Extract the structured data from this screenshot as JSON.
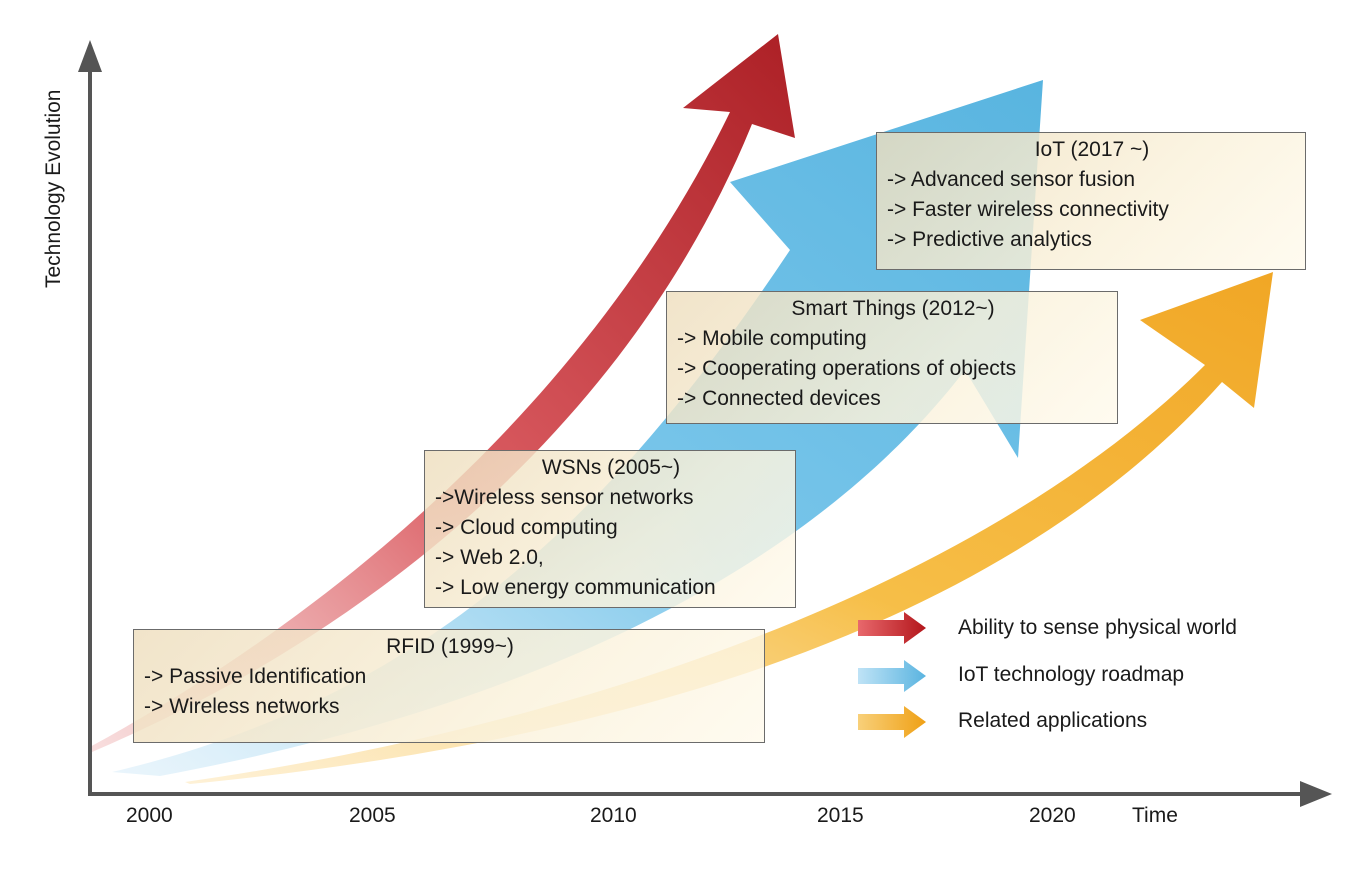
{
  "axes": {
    "y_label": "Technology Evolution",
    "x_label": "Time",
    "ticks": [
      "2000",
      "2005",
      "2010",
      "2015",
      "2020"
    ]
  },
  "eras": [
    {
      "title": "RFID (1999~)",
      "items": [
        "-> Passive Identification",
        "-> Wireless networks"
      ]
    },
    {
      "title": "WSNs (2005~)",
      "items": [
        "->Wireless sensor networks",
        "-> Cloud computing",
        "-> Web 2.0,",
        "-> Low energy communication"
      ]
    },
    {
      "title": "Smart Things (2012~)",
      "items": [
        "-> Mobile computing",
        "-> Cooperating operations of objects",
        "-> Connected devices"
      ]
    },
    {
      "title": "IoT (2017 ~)",
      "items": [
        "-> Advanced sensor fusion",
        "-> Faster wireless connectivity",
        "-> Predictive analytics"
      ]
    }
  ],
  "legend": [
    {
      "label": "Ability to sense physical world",
      "color": "#b81c1c"
    },
    {
      "label": "IoT technology roadmap",
      "color": "#5ab4e0"
    },
    {
      "label": "Related applications",
      "color": "#f2a81e"
    }
  ],
  "colors": {
    "axis": "#555555",
    "red_arrow": "#b81c1c",
    "blue_arrow": "#5ab4e0",
    "orange_arrow": "#f2a81e"
  }
}
